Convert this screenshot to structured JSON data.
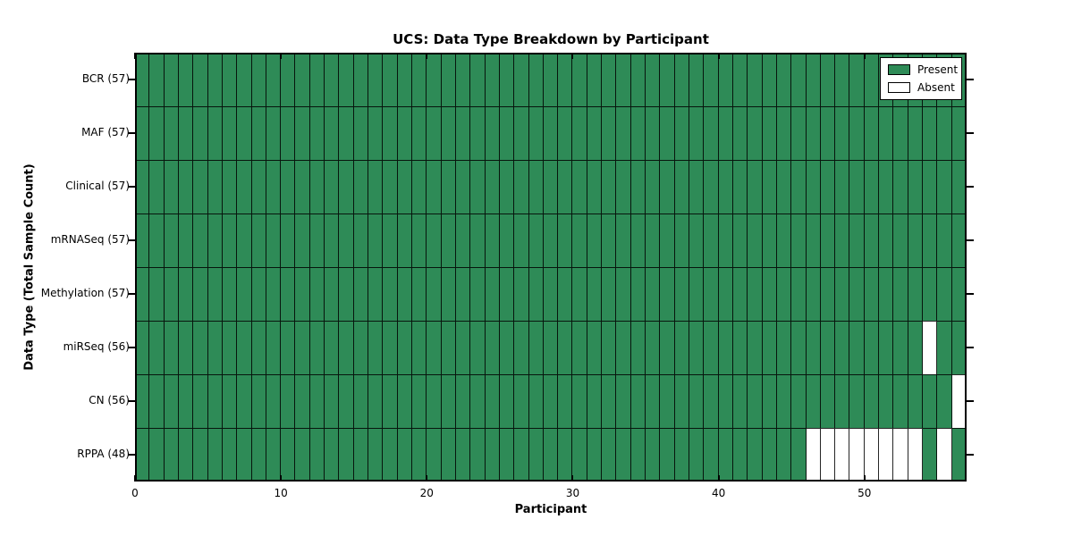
{
  "page": {
    "background": "#ffffff"
  },
  "chart_data": {
    "type": "heatmap",
    "title": "UCS: Data Type Breakdown by Participant",
    "xlabel": "Participant",
    "ylabel": "Data Type (Total Sample Count)",
    "n_columns": 57,
    "x_range": [
      0,
      57
    ],
    "x_ticks": [
      0,
      10,
      20,
      30,
      40,
      50
    ],
    "grid": false,
    "present_color": "#2e8b57",
    "absent_color": "#ffffff",
    "cell_edge_color": "#000000",
    "legend": {
      "position": "upper-right",
      "entries": [
        {
          "label": "Present",
          "color": "#2e8b57"
        },
        {
          "label": "Absent",
          "color": "#ffffff"
        }
      ]
    },
    "rows": [
      {
        "label": "BCR (57)",
        "total": 57,
        "absent_columns": []
      },
      {
        "label": "MAF (57)",
        "total": 57,
        "absent_columns": []
      },
      {
        "label": "Clinical (57)",
        "total": 57,
        "absent_columns": []
      },
      {
        "label": "mRNASeq (57)",
        "total": 57,
        "absent_columns": []
      },
      {
        "label": "Methylation (57)",
        "total": 57,
        "absent_columns": []
      },
      {
        "label": "miRSeq (56)",
        "total": 56,
        "absent_columns": [
          54
        ]
      },
      {
        "label": "CN (56)",
        "total": 56,
        "absent_columns": [
          56
        ]
      },
      {
        "label": "RPPA (48)",
        "total": 48,
        "absent_columns": [
          46,
          47,
          48,
          49,
          50,
          51,
          52,
          53,
          55
        ]
      }
    ]
  }
}
